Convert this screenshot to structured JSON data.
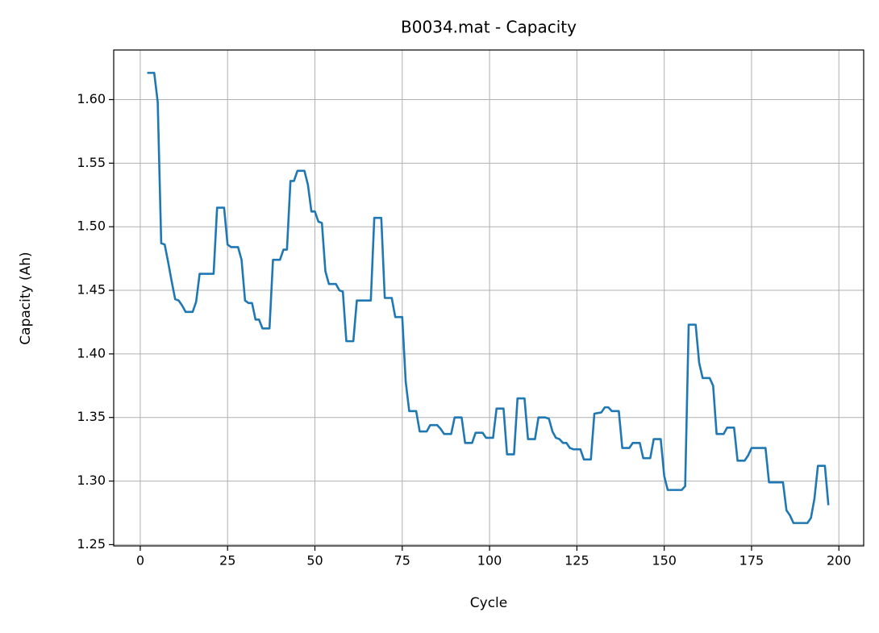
{
  "chart_data": {
    "type": "line",
    "title": "B0034.mat - Capacity",
    "x_label": "Cycle",
    "y_label": "Capacity (Ah)",
    "x": [
      2,
      4,
      5,
      6,
      7,
      8,
      9,
      10,
      11,
      12,
      13,
      15,
      16,
      17,
      21,
      22,
      24,
      25,
      26,
      28,
      29,
      30,
      31,
      32,
      33,
      34,
      35,
      37,
      38,
      40,
      41,
      42,
      43,
      44,
      45,
      47,
      48,
      49,
      50,
      51,
      52,
      53,
      54,
      56,
      57,
      58,
      59,
      61,
      62,
      66,
      67,
      69,
      70,
      72,
      73,
      75,
      76,
      77,
      79,
      80,
      82,
      83,
      85,
      86,
      87,
      89,
      90,
      92,
      93,
      95,
      96,
      98,
      99,
      101,
      102,
      104,
      105,
      107,
      108,
      110,
      111,
      113,
      114,
      116,
      117,
      118,
      119,
      120,
      121,
      122,
      123,
      124,
      126,
      127,
      129,
      130,
      132,
      133,
      134,
      135,
      137,
      138,
      140,
      141,
      143,
      144,
      146,
      147,
      149,
      150,
      151,
      155,
      156,
      157,
      159,
      160,
      161,
      163,
      164,
      165,
      167,
      168,
      170,
      171,
      173,
      174,
      175,
      179,
      180,
      184,
      185,
      186,
      187,
      191,
      192,
      193,
      194,
      196,
      197
    ],
    "values": [
      1.621,
      1.621,
      1.598,
      1.487,
      1.486,
      1.472,
      1.457,
      1.443,
      1.442,
      1.438,
      1.433,
      1.433,
      1.441,
      1.463,
      1.463,
      1.515,
      1.515,
      1.486,
      1.484,
      1.484,
      1.474,
      1.442,
      1.44,
      1.44,
      1.427,
      1.427,
      1.42,
      1.42,
      1.474,
      1.474,
      1.482,
      1.482,
      1.536,
      1.536,
      1.544,
      1.544,
      1.533,
      1.512,
      1.512,
      1.504,
      1.503,
      1.465,
      1.455,
      1.455,
      1.45,
      1.449,
      1.41,
      1.41,
      1.442,
      1.442,
      1.507,
      1.507,
      1.444,
      1.444,
      1.429,
      1.429,
      1.378,
      1.355,
      1.355,
      1.339,
      1.339,
      1.344,
      1.344,
      1.341,
      1.337,
      1.337,
      1.35,
      1.35,
      1.33,
      1.33,
      1.338,
      1.338,
      1.334,
      1.334,
      1.357,
      1.357,
      1.321,
      1.321,
      1.365,
      1.365,
      1.333,
      1.333,
      1.35,
      1.35,
      1.349,
      1.339,
      1.334,
      1.333,
      1.33,
      1.33,
      1.326,
      1.325,
      1.325,
      1.317,
      1.317,
      1.353,
      1.354,
      1.358,
      1.358,
      1.355,
      1.355,
      1.326,
      1.326,
      1.33,
      1.33,
      1.318,
      1.318,
      1.333,
      1.333,
      1.304,
      1.293,
      1.293,
      1.296,
      1.423,
      1.423,
      1.393,
      1.381,
      1.381,
      1.375,
      1.337,
      1.337,
      1.342,
      1.342,
      1.316,
      1.316,
      1.32,
      1.326,
      1.326,
      1.299,
      1.299,
      1.277,
      1.273,
      1.267,
      1.267,
      1.271,
      1.286,
      1.312,
      1.312,
      1.281
    ],
    "color": "#1f77b4",
    "xlim": [
      -7.6,
      207.1
    ],
    "xticks": [
      0,
      25,
      50,
      75,
      100,
      125,
      150,
      175,
      200
    ],
    "ylim": [
      1.249,
      1.639
    ],
    "yticks": [
      1.25,
      {
        "value": 1.3,
        "label": "1.30"
      },
      1.35,
      {
        "value": 1.4,
        "label": "1.40"
      },
      1.45,
      {
        "value": 1.5,
        "label": "1.50"
      },
      1.55,
      {
        "value": 1.6,
        "label": "1.60"
      }
    ],
    "grid": true
  }
}
